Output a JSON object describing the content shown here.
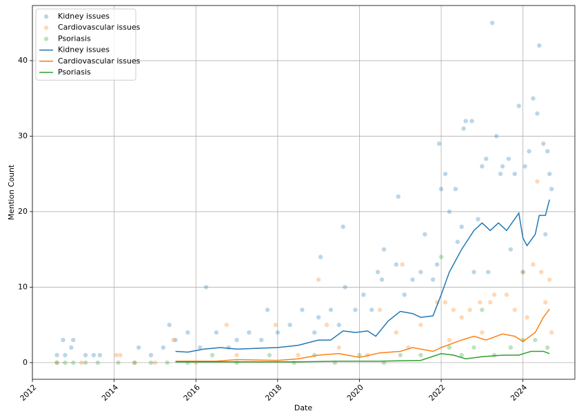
{
  "chart_data": {
    "type": "scatter",
    "xlabel": "Date",
    "ylabel": "Mention Count",
    "xlim": [
      2012.0,
      2025.27
    ],
    "xticks": [
      2012,
      2014,
      2016,
      2018,
      2020,
      2022,
      2024
    ],
    "ylim": [
      -2.2,
      47.3
    ],
    "yticks": [
      0,
      10,
      20,
      30,
      40
    ],
    "grid": true,
    "legend": "upper left",
    "series": [
      {
        "name": "Kidney issues",
        "type": "scatter",
        "color": "#1f77b4",
        "x": [
          2012.6,
          2012.75,
          2012.8,
          2012.95,
          2013.0,
          2013.3,
          2013.5,
          2013.65,
          2014.6,
          2014.9,
          2015.2,
          2015.35,
          2015.5,
          2015.8,
          2016.1,
          2016.25,
          2016.5,
          2016.8,
          2017.0,
          2017.3,
          2017.6,
          2017.75,
          2018.0,
          2018.3,
          2018.6,
          2018.9,
          2019.0,
          2019.05,
          2019.3,
          2019.5,
          2019.6,
          2019.65,
          2019.9,
          2020.1,
          2020.3,
          2020.45,
          2020.55,
          2020.6,
          2020.9,
          2020.95,
          2021.1,
          2021.3,
          2021.5,
          2021.6,
          2021.8,
          2021.95,
          2022.0,
          2022.1,
          2022.2,
          2022.35,
          2022.5,
          2022.55,
          2022.6,
          2022.75,
          2022.9,
          2023.0,
          2023.1,
          2023.25,
          2023.35,
          2023.45,
          2023.5,
          2023.65,
          2023.8,
          2023.9,
          2024.05,
          2024.15,
          2024.25,
          2024.35,
          2024.4,
          2024.5,
          2024.6,
          2024.65,
          2024.7,
          2023.7,
          2022.8,
          2024.0,
          2021.9,
          2022.4,
          2023.15,
          2024.55
        ],
        "values": [
          1,
          3,
          1,
          2,
          3,
          1,
          1,
          1,
          2,
          1,
          2,
          5,
          3,
          4,
          2,
          10,
          4,
          2,
          3,
          4,
          3,
          7,
          4,
          5,
          7,
          4,
          6,
          14,
          7,
          5,
          18,
          10,
          7,
          9,
          7,
          12,
          11,
          15,
          13,
          22,
          9,
          11,
          12,
          17,
          11,
          29,
          23,
          25,
          20,
          23,
          18,
          31,
          32,
          32,
          19,
          26,
          27,
          45,
          30,
          25,
          26,
          27,
          25,
          34,
          26,
          28,
          35,
          33,
          42,
          29,
          28,
          25,
          23,
          15,
          12,
          12,
          13,
          16,
          12,
          17
        ]
      },
      {
        "name": "Cardiovascular issues",
        "type": "scatter",
        "color": "#ff7f0e",
        "x": [
          2014.05,
          2014.15,
          2015.45,
          2016.75,
          2017.95,
          2019.0,
          2019.2,
          2020.5,
          2020.9,
          2021.05,
          2021.5,
          2021.9,
          2022.1,
          2022.3,
          2022.5,
          2022.7,
          2022.95,
          2023.2,
          2023.3,
          2023.6,
          2023.8,
          2024.0,
          2024.25,
          2024.35,
          2024.45,
          2024.55,
          2024.65,
          2012.6,
          2013.2,
          2014.5,
          2015.0,
          2016.0,
          2017.0,
          2018.5,
          2019.5,
          2020.2,
          2021.2,
          2022.2,
          2023.0,
          2024.1,
          2024.7
        ],
        "values": [
          1,
          1,
          3,
          5,
          5,
          11,
          5,
          7,
          4,
          13,
          5,
          8,
          8,
          7,
          6,
          7,
          8,
          8,
          9,
          9,
          7,
          12,
          13,
          24,
          12,
          8,
          11,
          0,
          0,
          0,
          0,
          0,
          1,
          1,
          2,
          1,
          2,
          3,
          4,
          6,
          4
        ]
      },
      {
        "name": "Psoriasis",
        "type": "scatter",
        "color": "#2ca02c",
        "x": [
          2012.6,
          2012.8,
          2013.0,
          2013.3,
          2013.6,
          2014.1,
          2014.5,
          2014.9,
          2015.3,
          2015.8,
          2016.4,
          2017.0,
          2017.8,
          2018.4,
          2018.9,
          2019.4,
          2020.0,
          2020.6,
          2021.0,
          2021.5,
          2022.0,
          2022.2,
          2022.5,
          2022.8,
          2023.0,
          2023.3,
          2023.7,
          2024.0,
          2024.3,
          2024.6
        ],
        "values": [
          0,
          0,
          0,
          0,
          0,
          0,
          0,
          0,
          0,
          0,
          1,
          0,
          1,
          0,
          1,
          0,
          1,
          0,
          1,
          1,
          14,
          2,
          1,
          2,
          7,
          1,
          2,
          3,
          3,
          2
        ]
      },
      {
        "name": "Kidney issues",
        "type": "line",
        "color": "#1f77b4",
        "x": [
          2015.5,
          2015.8,
          2016.2,
          2016.6,
          2017.0,
          2017.5,
          2018.0,
          2018.5,
          2019.0,
          2019.3,
          2019.6,
          2019.9,
          2020.2,
          2020.4,
          2020.7,
          2021.0,
          2021.3,
          2021.5,
          2021.8,
          2022.0,
          2022.2,
          2022.5,
          2022.8,
          2023.0,
          2023.2,
          2023.4,
          2023.6,
          2023.9,
          2024.0,
          2024.1,
          2024.3,
          2024.4,
          2024.55,
          2024.65
        ],
        "values": [
          1.5,
          1.4,
          1.8,
          2.0,
          1.8,
          1.9,
          2.0,
          2.3,
          3.0,
          3.0,
          4.2,
          4.0,
          4.2,
          3.5,
          5.5,
          6.8,
          6.5,
          6.0,
          6.2,
          9.0,
          12.0,
          15.0,
          17.5,
          18.5,
          17.5,
          18.5,
          17.5,
          19.8,
          16.5,
          15.5,
          17.0,
          19.5,
          19.5,
          21.6
        ]
      },
      {
        "name": "Cardiovascular issues",
        "type": "line",
        "color": "#ff7f0e",
        "x": [
          2015.5,
          2016.5,
          2017.0,
          2018.0,
          2018.5,
          2019.0,
          2019.5,
          2020.0,
          2020.5,
          2021.0,
          2021.3,
          2021.8,
          2022.0,
          2022.5,
          2022.8,
          2023.1,
          2023.5,
          2023.8,
          2024.0,
          2024.3,
          2024.5,
          2024.65
        ],
        "values": [
          0.2,
          0.2,
          0.4,
          0.3,
          0.5,
          1.0,
          1.2,
          0.7,
          1.3,
          1.5,
          2.0,
          1.5,
          2.0,
          3.0,
          3.5,
          3.0,
          3.8,
          3.5,
          2.8,
          4.0,
          6.0,
          7.1
        ]
      },
      {
        "name": "Psoriasis",
        "type": "line",
        "color": "#2ca02c",
        "x": [
          2015.5,
          2016.5,
          2017.5,
          2018.5,
          2019.5,
          2020.5,
          2021.5,
          2022.0,
          2022.3,
          2022.6,
          2023.0,
          2023.5,
          2023.9,
          2024.2,
          2024.5,
          2024.65
        ],
        "values": [
          0.1,
          0.1,
          0.1,
          0.1,
          0.2,
          0.2,
          0.3,
          1.2,
          1.0,
          0.5,
          0.8,
          1.0,
          1.0,
          1.5,
          1.5,
          1.2
        ]
      }
    ]
  }
}
